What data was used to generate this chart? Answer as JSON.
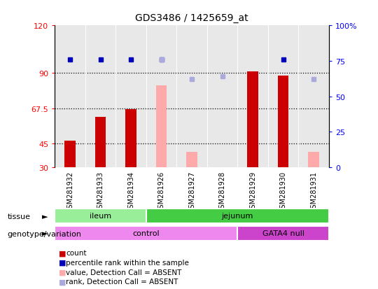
{
  "title": "GDS3486 / 1425659_at",
  "samples": [
    "GSM281932",
    "GSM281933",
    "GSM281934",
    "GSM281926",
    "GSM281927",
    "GSM281928",
    "GSM281929",
    "GSM281930",
    "GSM281931"
  ],
  "count_values": [
    47,
    62,
    67,
    null,
    null,
    null,
    91,
    88,
    null
  ],
  "count_color": "#cc0000",
  "absent_value_values": [
    null,
    null,
    null,
    82,
    40,
    null,
    null,
    null,
    40
  ],
  "absent_value_color": "#ffaaaa",
  "percentile_rank_values": [
    76,
    76,
    76,
    76,
    null,
    null,
    null,
    76,
    null
  ],
  "percentile_rank_color": "#0000bb",
  "absent_rank_values": [
    null,
    null,
    null,
    76,
    62,
    64,
    null,
    null,
    62
  ],
  "absent_rank_color": "#aaaadd",
  "ylim_left": [
    30,
    120
  ],
  "ylim_right": [
    0,
    100
  ],
  "yticks_left": [
    30,
    45,
    67.5,
    90,
    120
  ],
  "ytick_labels_left": [
    "30",
    "45",
    "67.5",
    "90",
    "120"
  ],
  "yticks_right": [
    0,
    25,
    50,
    75,
    100
  ],
  "ytick_labels_right": [
    "0",
    "25",
    "50",
    "75",
    "100%"
  ],
  "hlines": [
    45,
    67.5,
    90
  ],
  "tissue_groups": [
    {
      "label": "ileum",
      "start": 0,
      "end": 3,
      "color": "#99ee99"
    },
    {
      "label": "jejunum",
      "start": 3,
      "end": 9,
      "color": "#44cc44"
    }
  ],
  "genotype_groups": [
    {
      "label": "control",
      "start": 0,
      "end": 6,
      "color": "#ee88ee"
    },
    {
      "label": "GATA4 null",
      "start": 6,
      "end": 9,
      "color": "#cc44cc"
    }
  ],
  "legend_items": [
    {
      "label": "count",
      "color": "#cc0000"
    },
    {
      "label": "percentile rank within the sample",
      "color": "#0000bb"
    },
    {
      "label": "value, Detection Call = ABSENT",
      "color": "#ffaaaa"
    },
    {
      "label": "rank, Detection Call = ABSENT",
      "color": "#aaaadd"
    }
  ],
  "bar_width": 0.35,
  "plot_bg": "#e8e8e8",
  "tick_label_bg": "#c8c8c8",
  "tissue_arrow_label": "tissue",
  "geno_arrow_label": "genotype/variation"
}
